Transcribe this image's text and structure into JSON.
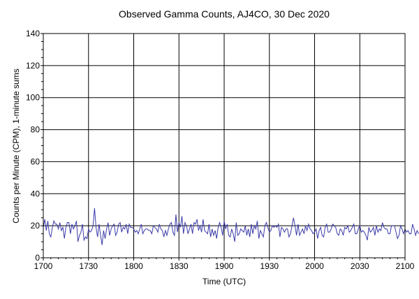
{
  "chart_data": {
    "type": "line",
    "title": "Observed Gamma Counts, AJ4CO, 30 Dec 2020",
    "xlabel": "Time (UTC)",
    "ylabel": "Counts per Minute (CPM), 1-minute sums",
    "x_tick_labels": [
      "1700",
      "1730",
      "1800",
      "1830",
      "1900",
      "1930",
      "2000",
      "2030",
      "2100"
    ],
    "xlim_minutes": [
      0,
      240
    ],
    "y_ticks": [
      0,
      20,
      40,
      60,
      80,
      100,
      120,
      140
    ],
    "ylim": [
      0,
      140
    ],
    "grid": true,
    "line_color": "#3a3aa8",
    "series": [
      {
        "x_start": "1700",
        "step_minutes": 1,
        "values": [
          19,
          24,
          17,
          23,
          15,
          13,
          19,
          23,
          21,
          21,
          18,
          22,
          17,
          19,
          12,
          19,
          22,
          22,
          15,
          21,
          18,
          20,
          23,
          10,
          14,
          16,
          21,
          11,
          13,
          12,
          18,
          16,
          17,
          20,
          31,
          19,
          13,
          21,
          14,
          8,
          17,
          12,
          18,
          22,
          14,
          18,
          20,
          21,
          14,
          16,
          21,
          22,
          16,
          19,
          18,
          21,
          15,
          21,
          19,
          19,
          18,
          16,
          17,
          15,
          18,
          21,
          15,
          17,
          18,
          18,
          17,
          17,
          15,
          20,
          19,
          18,
          16,
          21,
          18,
          17,
          13,
          17,
          14,
          18,
          21,
          22,
          16,
          14,
          27,
          16,
          22,
          19,
          26,
          15,
          22,
          20,
          15,
          18,
          21,
          15,
          22,
          21,
          24,
          17,
          20,
          16,
          24,
          17,
          16,
          15,
          21,
          13,
          18,
          14,
          17,
          12,
          19,
          22,
          19,
          14,
          23,
          18,
          21,
          14,
          13,
          18,
          15,
          10,
          22,
          14,
          15,
          18,
          17,
          16,
          20,
          14,
          18,
          13,
          21,
          15,
          20,
          18,
          23,
          12,
          17,
          15,
          13,
          20,
          22,
          19,
          16,
          17,
          20,
          19,
          20,
          19,
          21,
          13,
          19,
          18,
          16,
          18,
          18,
          13,
          15,
          20,
          25,
          20,
          14,
          21,
          14,
          16,
          18,
          15,
          20,
          17,
          21,
          18,
          17,
          15,
          16,
          18,
          12,
          17,
          19,
          14,
          13,
          19,
          21,
          16,
          16,
          18,
          21,
          20,
          19,
          15,
          14,
          18,
          17,
          14,
          19,
          18,
          20,
          16,
          17,
          19,
          21,
          15,
          15,
          18,
          20,
          16,
          17,
          16,
          14,
          11,
          19,
          16,
          17,
          19,
          14,
          20,
          16,
          18,
          17,
          22,
          19,
          18,
          18,
          15,
          15,
          20,
          20,
          20,
          16,
          12,
          14,
          20,
          18,
          15,
          18,
          16,
          17,
          15,
          15,
          21,
          18,
          14,
          17,
          15
        ]
      }
    ]
  }
}
